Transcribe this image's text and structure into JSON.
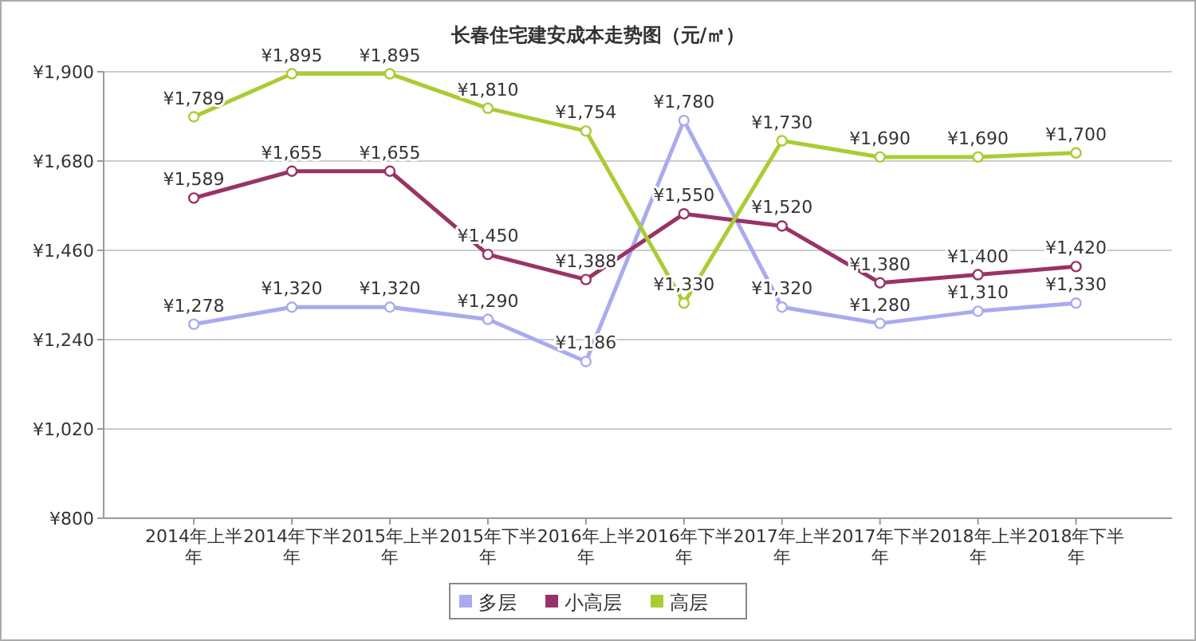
{
  "chart_data": {
    "type": "line",
    "title": "长春住宅建安成本走势图（元/㎡）",
    "categories": [
      "2014年上半年",
      "2014年下半年",
      "2015年上半年",
      "2015年下半年",
      "2016年上半年",
      "2016年下半年",
      "2017年上半年",
      "2017年下半年",
      "2018年上半年",
      "2018年下半年"
    ],
    "series": [
      {
        "name": "多层",
        "color": "#aaaaf0",
        "values": [
          1278,
          1320,
          1320,
          1290,
          1186,
          1780,
          1320,
          1280,
          1310,
          1330
        ],
        "value_labels": [
          "¥1,278",
          "¥1,320",
          "¥1,320",
          "¥1,290",
          "¥1,186",
          "¥1,780",
          "¥1,320",
          "¥1,280",
          "¥1,310",
          "¥1,330"
        ]
      },
      {
        "name": "小高层",
        "color": "#993366",
        "values": [
          1589,
          1655,
          1655,
          1450,
          1388,
          1550,
          1520,
          1380,
          1400,
          1420
        ],
        "value_labels": [
          "¥1,589",
          "¥1,655",
          "¥1,655",
          "¥1,450",
          "¥1,388",
          "¥1,550",
          "¥1,520",
          "¥1,380",
          "¥1,400",
          "¥1,420"
        ]
      },
      {
        "name": "高层",
        "color": "#aacc33",
        "values": [
          1789,
          1895,
          1895,
          1810,
          1754,
          1330,
          1730,
          1690,
          1690,
          1700
        ],
        "value_labels": [
          "¥1,789",
          "¥1,895",
          "¥1,895",
          "¥1,810",
          "¥1,754",
          "¥1,330",
          "¥1,730",
          "¥1,690",
          "¥1,690",
          "¥1,700"
        ]
      }
    ],
    "ylim": [
      800,
      1900
    ],
    "yticks": [
      {
        "value": 800,
        "label": "¥800"
      },
      {
        "value": 1020,
        "label": "¥1,020"
      },
      {
        "value": 1240,
        "label": "¥1,240"
      },
      {
        "value": 1460,
        "label": "¥1,460"
      },
      {
        "value": 1680,
        "label": "¥1,680"
      },
      {
        "value": 1900,
        "label": "¥1,900"
      }
    ],
    "grid": "y",
    "legend": "bottom",
    "marker": "circle",
    "line_style": "solid"
  }
}
